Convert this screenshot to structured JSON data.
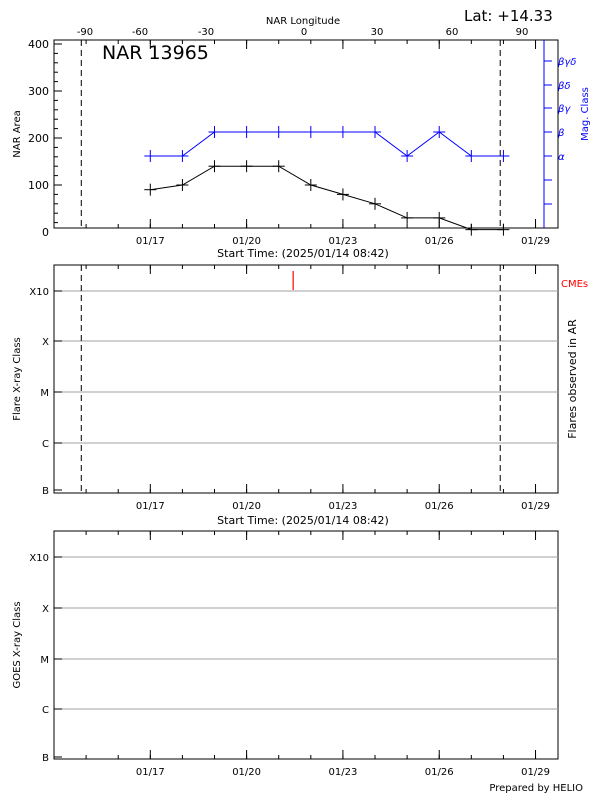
{
  "header": {
    "title": "NAR 13965",
    "latitude": "Lat: +14.33",
    "longitude_label": "NAR Longitude",
    "footer": "Prepared by HELIO"
  },
  "colors": {
    "mag": "#0000ff",
    "area": "#000000",
    "cme": "#ff0000",
    "grid": "#a0a0a0"
  },
  "chart_data": [
    {
      "type": "line",
      "x_ticks": [
        "01/17",
        "01/20",
        "01/23",
        "01/26",
        "01/29"
      ],
      "x_tick_values": [
        3,
        6,
        9,
        12,
        15
      ],
      "xlim": [
        0,
        15.7
      ],
      "xlabel": "Start Time: (2025/01/14 08:42)",
      "ylabel": "NAR Area",
      "ylim": [
        0,
        400
      ],
      "y_ticks": [
        0,
        100,
        200,
        300,
        400
      ],
      "y2label": "Mag. Class",
      "y2_ticks": [
        "α",
        "β",
        "βγ",
        "βδ",
        "βγδ"
      ],
      "top_axis_label": "NAR Longitude",
      "top_axis_ticks": [
        "-90",
        "-60",
        "-30",
        "0",
        "30",
        "60",
        "90"
      ],
      "limb_lines_x": [
        0.85,
        13.9
      ],
      "series": [
        {
          "axis": "left",
          "x": [
            3,
            4,
            5,
            6,
            7,
            8,
            9,
            10,
            11,
            12,
            13,
            14
          ],
          "values": [
            90,
            100,
            140,
            140,
            140,
            100,
            80,
            60,
            30,
            30,
            5,
            5
          ]
        },
        {
          "axis": "right",
          "x": [
            3,
            4,
            5,
            6,
            7,
            8,
            9,
            10,
            11,
            12,
            13,
            14
          ],
          "values": [
            "α",
            "α",
            "β",
            "β",
            "β",
            "β",
            "β",
            "β",
            "α",
            "β",
            "α",
            "α"
          ]
        }
      ]
    },
    {
      "type": "scatter",
      "x_ticks": [
        "01/17",
        "01/20",
        "01/23",
        "01/26",
        "01/29"
      ],
      "x_tick_values": [
        3,
        6,
        9,
        12,
        15
      ],
      "xlim": [
        0,
        15.7
      ],
      "xlabel": "Start Time: (2025/01/14 08:42)",
      "ylabel": "Flare X-ray Class",
      "y2label": "Flares observed in AR",
      "y_ticks": [
        "B",
        "C",
        "M",
        "X",
        "X10"
      ],
      "limb_lines_x": [
        0.85,
        13.9
      ],
      "events": [
        {
          "name": "CMEs",
          "x": [
            7.45
          ]
        }
      ]
    },
    {
      "type": "line",
      "x_ticks": [
        "01/17",
        "01/20",
        "01/23",
        "01/26",
        "01/29"
      ],
      "x_tick_values": [
        3,
        6,
        9,
        12,
        15
      ],
      "xlim": [
        0,
        15.7
      ],
      "ylabel": "GOES X-ray Class",
      "y_ticks": [
        "B",
        "C",
        "M",
        "X",
        "X10"
      ],
      "series": []
    }
  ]
}
